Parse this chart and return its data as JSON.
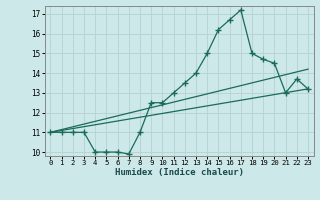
{
  "xlabel": "Humidex (Indice chaleur)",
  "bg_color": "#cce8e8",
  "grid_color": "#b8d4d4",
  "line_color": "#1a6b5a",
  "xlim": [
    -0.5,
    23.5
  ],
  "ylim": [
    9.8,
    17.4
  ],
  "xticks": [
    0,
    1,
    2,
    3,
    4,
    5,
    6,
    7,
    8,
    9,
    10,
    11,
    12,
    13,
    14,
    15,
    16,
    17,
    18,
    19,
    20,
    21,
    22,
    23
  ],
  "yticks": [
    10,
    11,
    12,
    13,
    14,
    15,
    16,
    17
  ],
  "line1_x": [
    0,
    1,
    2,
    3,
    4,
    5,
    6,
    7,
    8,
    9,
    10,
    11,
    12,
    13,
    14,
    15,
    16,
    17,
    18,
    19,
    20,
    21,
    22,
    23
  ],
  "line1_y": [
    11,
    11,
    11,
    11,
    10,
    10,
    10,
    9.9,
    11,
    12.5,
    12.5,
    13,
    13.5,
    14,
    15,
    16.2,
    16.7,
    17.2,
    15,
    14.7,
    14.5,
    13,
    13.7,
    13.2
  ],
  "line2_x": [
    0,
    23
  ],
  "line2_y": [
    11,
    14.2
  ],
  "line3_x": [
    0,
    23
  ],
  "line3_y": [
    11,
    13.2
  ]
}
